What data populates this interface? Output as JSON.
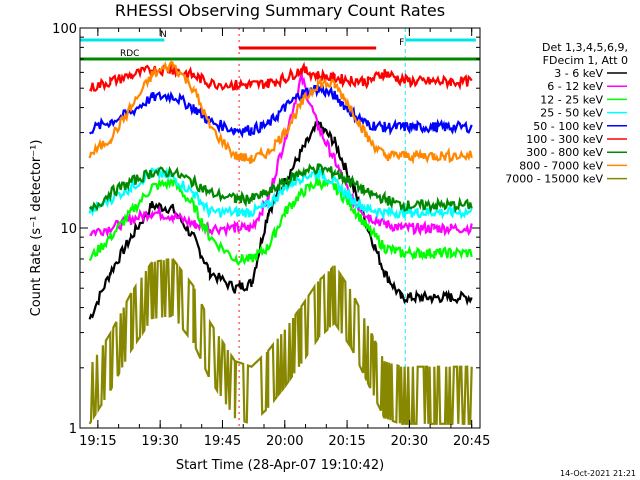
{
  "chart_data": {
    "type": "line",
    "title": "RHESSI Observing Summary Count Rates",
    "xlabel": "Start Time (28-Apr-07 19:10:42)",
    "ylabel": "Count Rate (s⁻¹ detector⁻¹)",
    "y_scale": "log",
    "ylim": [
      1,
      100
    ],
    "xlim": [
      "19:10:42",
      "20:47:00"
    ],
    "x_ticks": [
      "19:15",
      "19:30",
      "19:45",
      "20:00",
      "20:15",
      "20:30",
      "20:45"
    ],
    "y_ticks": [
      "1",
      "10",
      "100"
    ],
    "grid": false,
    "legend_header": [
      "Det 1,3,4,5,6,9,",
      "FDecim 1, Att 0"
    ],
    "legend_position": "right",
    "date_stamp": "14-Oct-2021 21:21",
    "flags": [
      {
        "label": "N",
        "color": "#00e5e5",
        "intervals": [
          [
            "19:10:42",
            "19:31:00"
          ],
          [
            "20:29:00",
            "20:46:00"
          ]
        ]
      },
      {
        "label": "RDC",
        "color": "#008800",
        "intervals": [
          [
            "19:10:42",
            "20:47:00"
          ]
        ]
      },
      {
        "label": "F",
        "color": "#ee0000",
        "intervals": [
          [
            "19:49:00",
            "20:22:00"
          ]
        ]
      }
    ],
    "series": [
      {
        "name": "3 - 6 keV",
        "color": "#000000",
        "x": [
          "19:13",
          "19:18",
          "19:23",
          "19:28",
          "19:33",
          "19:38",
          "19:42",
          "19:48",
          "19:52",
          "19:56",
          "20:00",
          "20:04",
          "20:08",
          "20:12",
          "20:16",
          "20:20",
          "20:24",
          "20:28",
          "20:32",
          "20:36",
          "20:40",
          "20:45"
        ],
        "y": [
          3.5,
          6,
          9,
          13,
          12.5,
          9,
          6,
          5,
          5.3,
          12,
          17,
          24,
          33,
          27,
          17,
          10,
          6,
          4.5,
          4.5,
          4.5,
          4.5,
          4.5
        ]
      },
      {
        "name": "6 - 12 keV",
        "color": "#ff00ff",
        "x": [
          "19:13",
          "19:18",
          "19:23",
          "19:28",
          "19:33",
          "19:38",
          "19:42",
          "19:48",
          "19:52",
          "19:56",
          "20:00",
          "20:04",
          "20:08",
          "20:12",
          "20:16",
          "20:20",
          "20:24",
          "20:28",
          "20:32",
          "20:36",
          "20:40",
          "20:45"
        ],
        "y": [
          9.5,
          10,
          11,
          12,
          11.5,
          10.5,
          10,
          10,
          10,
          14,
          28,
          57,
          32,
          22,
          14,
          11.5,
          10.5,
          10,
          10,
          10,
          10,
          10
        ]
      },
      {
        "name": "12 - 25 keV",
        "color": "#00ff00",
        "x": [
          "19:13",
          "19:18",
          "19:23",
          "19:28",
          "19:33",
          "19:38",
          "19:42",
          "19:48",
          "19:52",
          "19:56",
          "20:00",
          "20:04",
          "20:08",
          "20:12",
          "20:16",
          "20:20",
          "20:24",
          "20:28",
          "20:32",
          "20:36",
          "20:40",
          "20:45"
        ],
        "y": [
          7,
          9,
          12,
          16,
          17,
          13,
          9,
          7,
          7,
          8,
          12,
          15,
          17,
          16,
          13,
          10,
          8,
          7.5,
          7.5,
          7.5,
          7.5,
          7.5
        ]
      },
      {
        "name": "25 - 50 keV",
        "color": "#00ffff",
        "x": [
          "19:13",
          "19:18",
          "19:23",
          "19:28",
          "19:33",
          "19:38",
          "19:42",
          "19:48",
          "19:52",
          "19:56",
          "20:00",
          "20:04",
          "20:08",
          "20:12",
          "20:16",
          "20:20",
          "20:24",
          "20:28",
          "20:32",
          "20:36",
          "20:40",
          "20:45"
        ],
        "y": [
          12,
          14,
          16,
          19,
          18,
          15,
          12,
          12,
          12,
          13,
          16,
          18,
          19,
          17,
          14,
          12.5,
          12,
          12,
          12,
          12,
          12,
          12
        ]
      },
      {
        "name": "50 - 100 keV",
        "color": "#0000ff",
        "x": [
          "19:13",
          "19:18",
          "19:23",
          "19:28",
          "19:33",
          "19:38",
          "19:42",
          "19:48",
          "19:52",
          "19:56",
          "20:00",
          "20:04",
          "20:08",
          "20:12",
          "20:16",
          "20:20",
          "20:24",
          "20:28",
          "20:32",
          "20:36",
          "20:40",
          "20:45"
        ],
        "y": [
          31,
          34,
          38,
          45,
          46,
          40,
          34,
          31,
          31,
          33,
          40,
          47,
          50,
          46,
          38,
          33,
          32,
          32,
          32,
          32,
          32,
          32
        ]
      },
      {
        "name": "100 - 300 keV",
        "color": "#ff0000",
        "x": [
          "19:13",
          "19:18",
          "19:23",
          "19:28",
          "19:33",
          "19:38",
          "19:42",
          "19:48",
          "19:52",
          "19:56",
          "20:00",
          "20:04",
          "20:08",
          "20:12",
          "20:16",
          "20:20",
          "20:24",
          "20:28",
          "20:32",
          "20:36",
          "20:40",
          "20:45"
        ],
        "y": [
          50,
          54,
          58,
          62,
          62,
          58,
          53,
          52,
          52,
          53,
          56,
          62,
          58,
          56,
          55,
          54,
          60,
          55,
          54,
          54,
          54,
          54
        ]
      },
      {
        "name": "300 - 800 keV",
        "color": "#008800",
        "x": [
          "19:13",
          "19:18",
          "19:23",
          "19:28",
          "19:33",
          "19:38",
          "19:42",
          "19:48",
          "19:52",
          "19:56",
          "20:00",
          "20:04",
          "20:08",
          "20:12",
          "20:16",
          "20:20",
          "20:24",
          "20:28",
          "20:32",
          "20:36",
          "20:40",
          "20:45"
        ],
        "y": [
          12,
          15,
          17,
          19,
          19,
          17,
          15,
          14,
          14,
          15,
          17,
          19,
          20,
          19,
          17,
          15,
          14,
          13,
          13,
          13,
          13,
          13
        ]
      },
      {
        "name": "800 - 7000 keV",
        "color": "#ff8800",
        "x": [
          "19:13",
          "19:18",
          "19:23",
          "19:28",
          "19:33",
          "19:38",
          "19:42",
          "19:48",
          "19:52",
          "19:56",
          "20:00",
          "20:04",
          "20:08",
          "20:12",
          "20:16",
          "20:20",
          "20:24",
          "20:28",
          "20:32",
          "20:36",
          "20:40",
          "20:45"
        ],
        "y": [
          23,
          28,
          40,
          58,
          66,
          50,
          32,
          23,
          22,
          24,
          30,
          42,
          53,
          52,
          40,
          28,
          23,
          23,
          23,
          23,
          23,
          23
        ]
      },
      {
        "name": "7000 - 15000 keV",
        "color": "#888800",
        "x": [
          "19:13",
          "19:18",
          "19:23",
          "19:28",
          "19:33",
          "19:38",
          "19:42",
          "19:48",
          "19:52",
          "19:56",
          "20:00",
          "20:04",
          "20:08",
          "20:12",
          "20:16",
          "20:20",
          "20:24",
          "20:28",
          "20:32",
          "20:36",
          "20:40",
          "20:45"
        ],
        "y": [
          1.5,
          2.2,
          3.5,
          5,
          5.2,
          3.8,
          2.5,
          1.6,
          1.5,
          1.8,
          2.3,
          3,
          4,
          4.8,
          3.6,
          2.4,
          1.6,
          1.5,
          1.5,
          1.5,
          1.5,
          1.5
        ]
      }
    ]
  }
}
